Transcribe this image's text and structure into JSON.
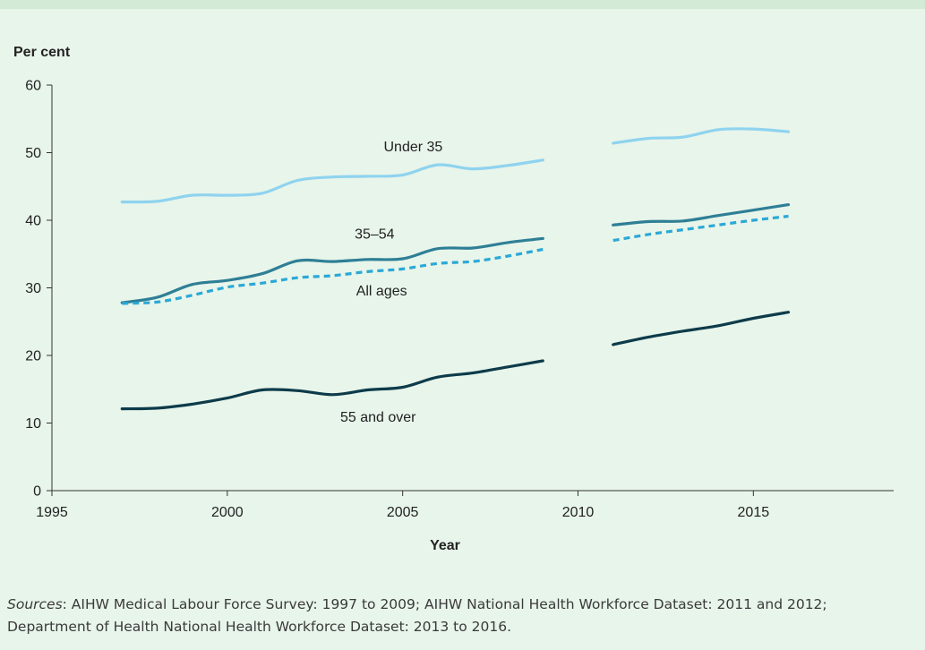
{
  "chart_data": {
    "type": "line",
    "ylabel": "Per cent",
    "xlabel": "Year",
    "xlim": [
      1995,
      2019
    ],
    "ylim": [
      0,
      60
    ],
    "x_ticks": [
      1995,
      2000,
      2005,
      2010,
      2015
    ],
    "y_ticks": [
      0,
      10,
      20,
      30,
      40,
      50,
      60
    ],
    "grid": false,
    "series": [
      {
        "name": "Under 35",
        "color": "#8fd3ef",
        "style": "solid",
        "segments": [
          [
            [
              1997,
              42.7
            ],
            [
              1998,
              42.8
            ],
            [
              1999,
              43.7
            ],
            [
              2000,
              43.7
            ],
            [
              2001,
              44.0
            ],
            [
              2002,
              45.9
            ],
            [
              2003,
              46.4
            ],
            [
              2004,
              46.5
            ],
            [
              2005,
              46.7
            ],
            [
              2006,
              48.2
            ],
            [
              2007,
              47.6
            ],
            [
              2008,
              48.1
            ],
            [
              2009,
              48.9
            ]
          ],
          [
            [
              2011,
              51.4
            ],
            [
              2012,
              52.1
            ],
            [
              2013,
              52.3
            ],
            [
              2014,
              53.4
            ],
            [
              2015,
              53.5
            ],
            [
              2016,
              53.1
            ]
          ]
        ]
      },
      {
        "name": "35–54",
        "color": "#2e7f96",
        "style": "solid",
        "segments": [
          [
            [
              1997,
              27.8
            ],
            [
              1998,
              28.6
            ],
            [
              1999,
              30.5
            ],
            [
              2000,
              31.1
            ],
            [
              2001,
              32.1
            ],
            [
              2002,
              34.0
            ],
            [
              2003,
              33.9
            ],
            [
              2004,
              34.2
            ],
            [
              2005,
              34.3
            ],
            [
              2006,
              35.8
            ],
            [
              2007,
              35.9
            ],
            [
              2008,
              36.7
            ],
            [
              2009,
              37.3
            ]
          ],
          [
            [
              2011,
              39.3
            ],
            [
              2012,
              39.8
            ],
            [
              2013,
              39.9
            ],
            [
              2014,
              40.7
            ],
            [
              2015,
              41.5
            ],
            [
              2016,
              42.3
            ]
          ]
        ]
      },
      {
        "name": "All ages",
        "color": "#2ba8d6",
        "style": "dashed",
        "segments": [
          [
            [
              1997,
              27.7
            ],
            [
              1998,
              27.9
            ],
            [
              1999,
              28.9
            ],
            [
              2000,
              30.1
            ],
            [
              2001,
              30.7
            ],
            [
              2002,
              31.5
            ],
            [
              2003,
              31.8
            ],
            [
              2004,
              32.4
            ],
            [
              2005,
              32.8
            ],
            [
              2006,
              33.6
            ],
            [
              2007,
              33.9
            ],
            [
              2008,
              34.7
            ],
            [
              2009,
              35.7
            ]
          ],
          [
            [
              2011,
              37.0
            ],
            [
              2012,
              37.9
            ],
            [
              2013,
              38.6
            ],
            [
              2014,
              39.3
            ],
            [
              2015,
              40.0
            ],
            [
              2016,
              40.6
            ]
          ]
        ]
      },
      {
        "name": "55 and over",
        "color": "#0d3b4a",
        "style": "solid",
        "segments": [
          [
            [
              1997,
              12.1
            ],
            [
              1998,
              12.2
            ],
            [
              1999,
              12.8
            ],
            [
              2000,
              13.7
            ],
            [
              2001,
              14.9
            ],
            [
              2002,
              14.8
            ],
            [
              2003,
              14.2
            ],
            [
              2004,
              14.9
            ],
            [
              2005,
              15.3
            ],
            [
              2006,
              16.8
            ],
            [
              2007,
              17.4
            ],
            [
              2008,
              18.3
            ],
            [
              2009,
              19.2
            ]
          ],
          [
            [
              2011,
              21.6
            ],
            [
              2012,
              22.7
            ],
            [
              2013,
              23.6
            ],
            [
              2014,
              24.4
            ],
            [
              2015,
              25.5
            ],
            [
              2016,
              26.4
            ]
          ]
        ]
      }
    ],
    "annotations": [
      {
        "text": "Under 35",
        "x": 2005.3,
        "y": 50.2
      },
      {
        "text": "35–54",
        "x": 2004.2,
        "y": 37.3
      },
      {
        "text": "All ages",
        "x": 2004.4,
        "y": 28.9
      },
      {
        "text": "55 and over",
        "x": 2004.3,
        "y": 10.2
      }
    ]
  },
  "sources": {
    "label": "Sources",
    "text": ": AIHW Medical Labour Force Survey: 1997 to 2009; AIHW National Health Workforce Dataset: 2011 and 2012; Department of Health National Health Workforce Dataset: 2013 to 2016."
  }
}
